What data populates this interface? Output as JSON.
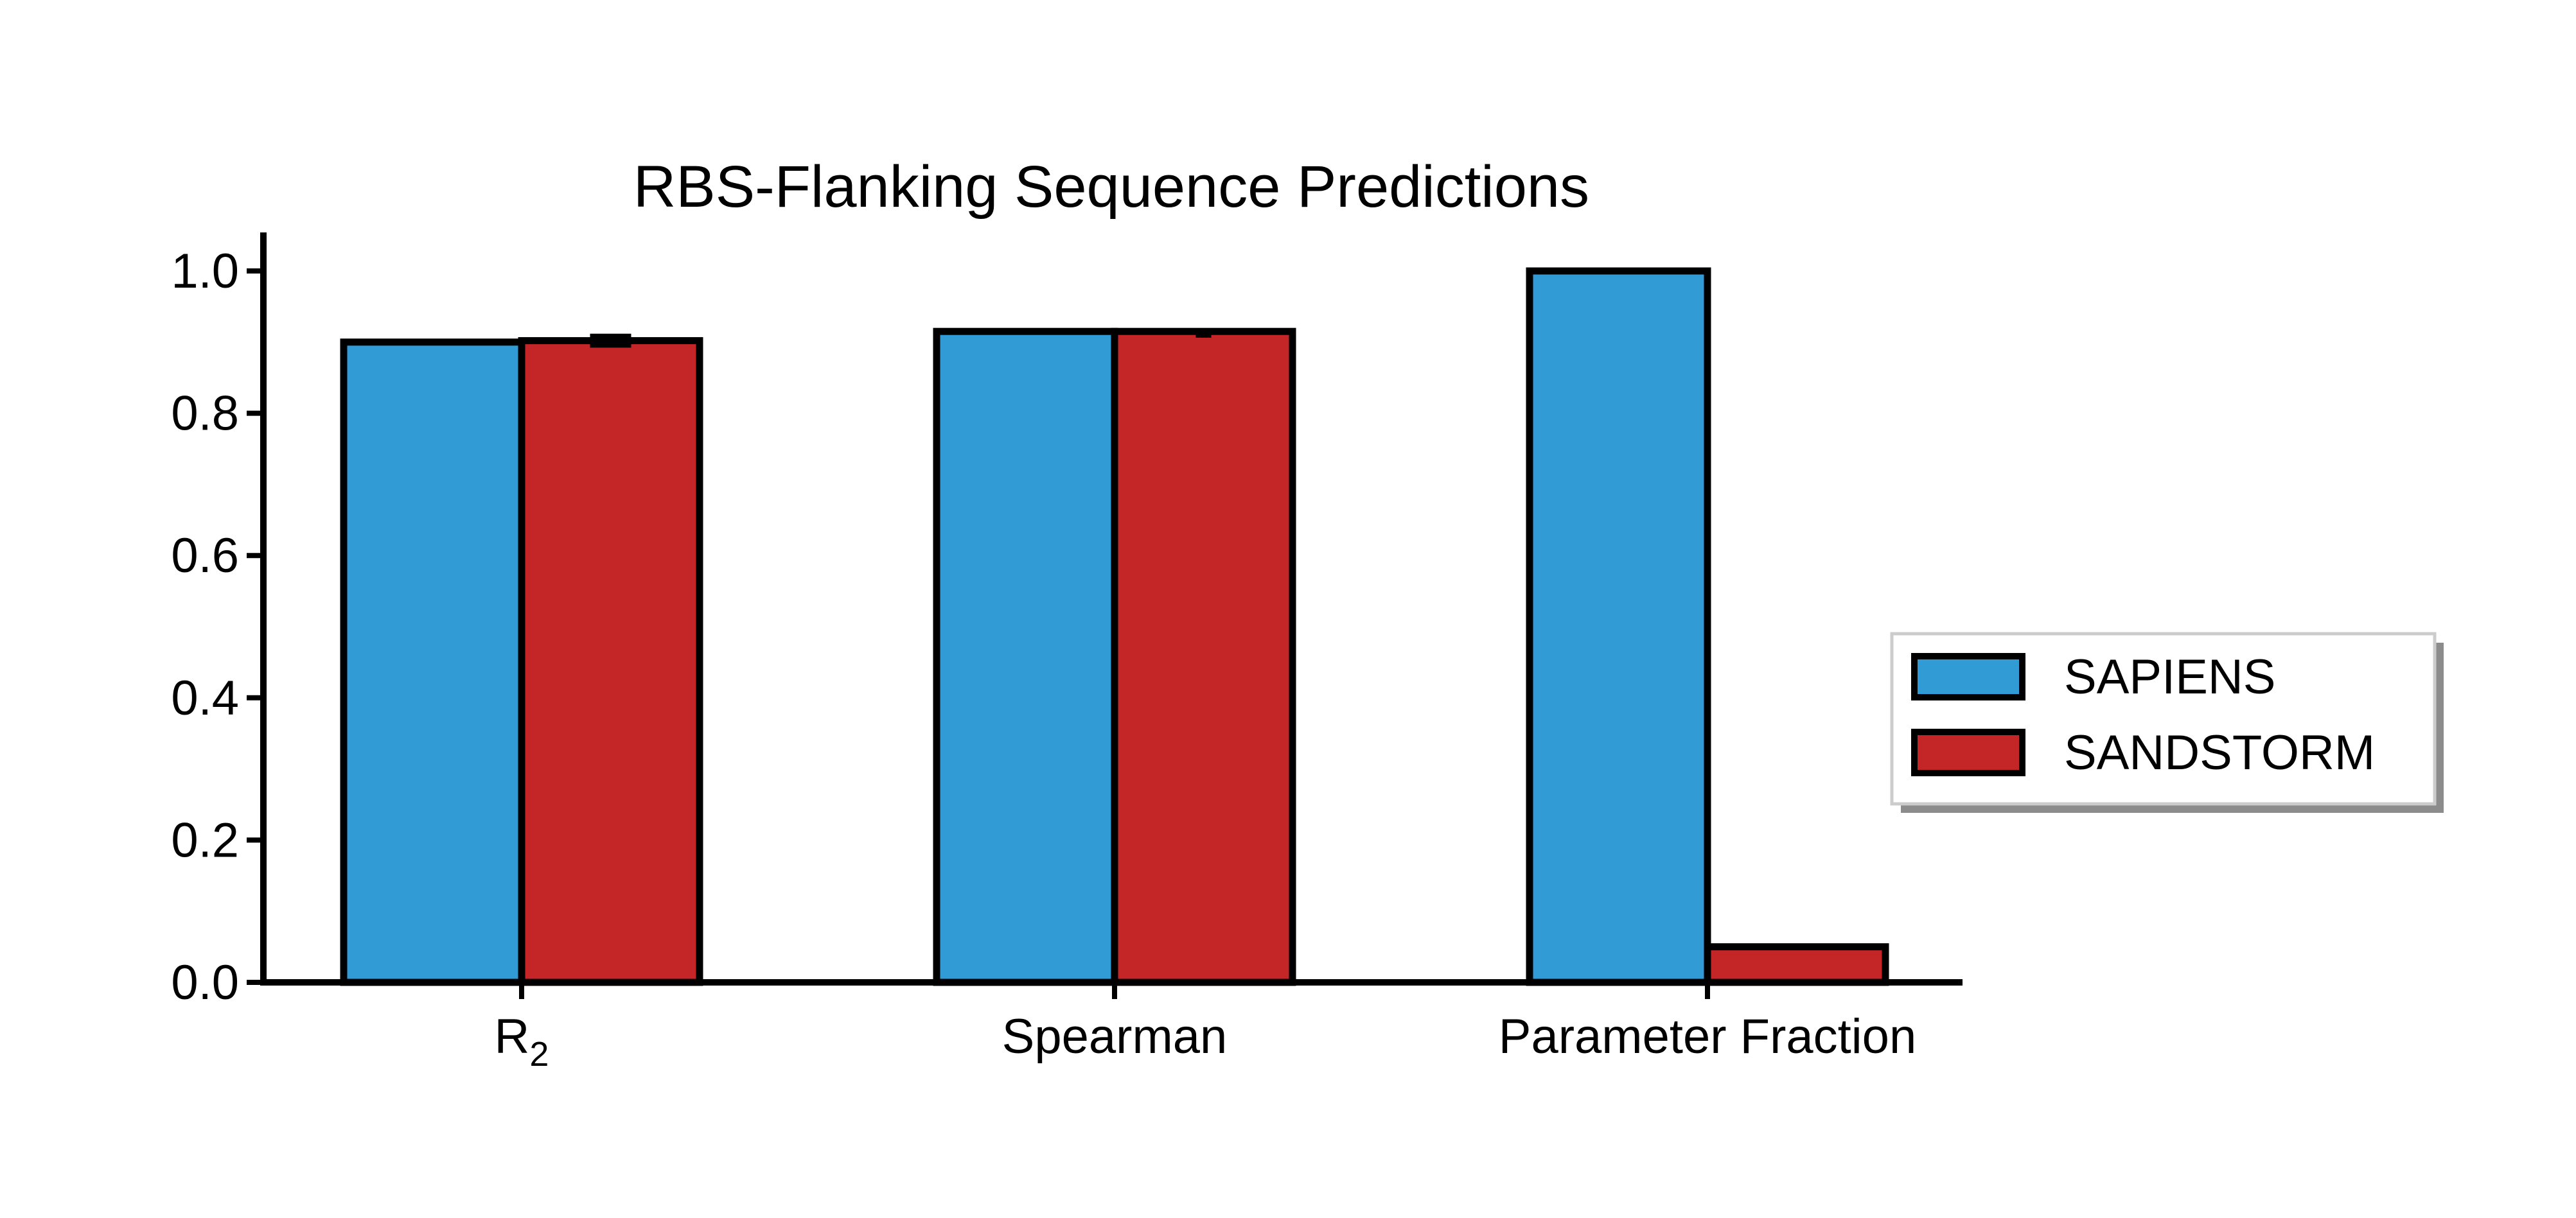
{
  "chart_data": {
    "type": "bar",
    "title": "RBS-Flanking Sequence Predictions",
    "categories": [
      {
        "base": "R",
        "sub": "2"
      },
      {
        "base": "Spearman",
        "sub": ""
      },
      {
        "base": "Parameter Fraction",
        "sub": ""
      }
    ],
    "series": [
      {
        "name": "SAPIENS",
        "color": "#319bd6",
        "values": [
          0.9,
          0.915,
          1.0
        ],
        "errors": [
          null,
          null,
          null
        ]
      },
      {
        "name": "SANDSTORM",
        "color": "#c42527",
        "values": [
          0.902,
          0.915,
          0.05
        ],
        "errors": [
          0.008,
          0.002,
          null
        ]
      }
    ],
    "ylim": [
      0,
      1.05
    ],
    "yticks": [
      "0.0",
      "0.2",
      "0.4",
      "0.6",
      "0.8",
      "1.0"
    ],
    "xlabel": "",
    "ylabel": "",
    "grid": false,
    "legend_position": "center-right",
    "edge_color": "#000000"
  }
}
